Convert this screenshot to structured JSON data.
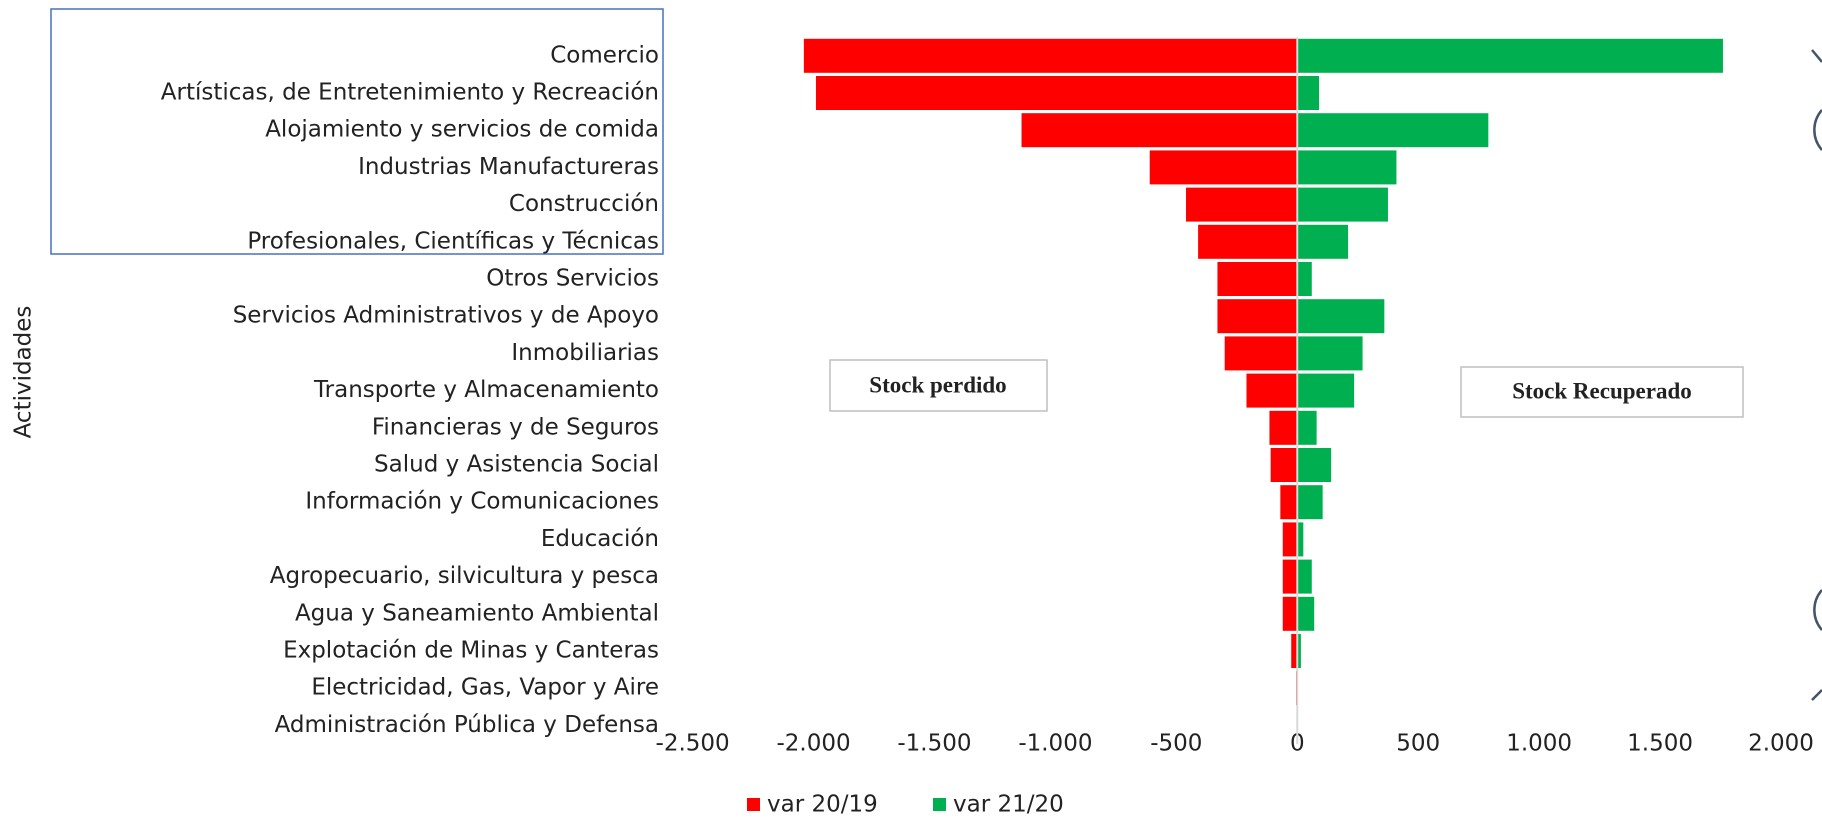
{
  "chart_data": {
    "type": "bar",
    "orientation": "horizontal",
    "y_label": "Actividades",
    "categories": [
      "Comercio",
      "Artísticas, de Entretenimiento y Recreación",
      "Alojamiento y servicios de comida",
      "Industrias Manufactureras",
      "Construcción",
      "Profesionales, Científicas y Técnicas",
      "Otros Servicios",
      "Servicios Administrativos y de Apoyo",
      "Inmobiliarias",
      "Transporte y Almacenamiento",
      "Financieras y de Seguros",
      "Salud y Asistencia Social",
      "Información y Comunicaciones",
      "Educación",
      "Agropecuario, silvicultura y pesca",
      "Agua y Saneamiento Ambiental",
      "Explotación de Minas y Canteras",
      "Electricidad, Gas, Vapor y Aire",
      "Administración Pública y Defensa"
    ],
    "series": [
      {
        "name": "var 20/19",
        "color": "#ff0000",
        "values": [
          -2040,
          -1990,
          -1140,
          -610,
          -460,
          -410,
          -330,
          -330,
          -300,
          -210,
          -115,
          -110,
          -70,
          -60,
          -60,
          -60,
          -25,
          -5,
          -2
        ]
      },
      {
        "name": "var 21/20",
        "color": "#00b050",
        "values": [
          1760,
          90,
          790,
          410,
          375,
          210,
          60,
          360,
          270,
          235,
          80,
          140,
          105,
          25,
          60,
          70,
          15,
          3,
          2
        ]
      }
    ],
    "xlim": [
      -2500,
      2000
    ],
    "xticks": [
      {
        "value": -2500,
        "label": "-2.500"
      },
      {
        "value": -2000,
        "label": "-2.000"
      },
      {
        "value": -1500,
        "label": "-1.500"
      },
      {
        "value": -1000,
        "label": "-1.000"
      },
      -500,
      0,
      500,
      {
        "value": 1000,
        "label": "1.000"
      },
      {
        "value": 1500,
        "label": "1.500"
      },
      {
        "value": 2000,
        "label": "2.000"
      }
    ],
    "annotations": [
      "Stock perdido",
      "Stock Recuperado"
    ],
    "legend": "bottom"
  }
}
